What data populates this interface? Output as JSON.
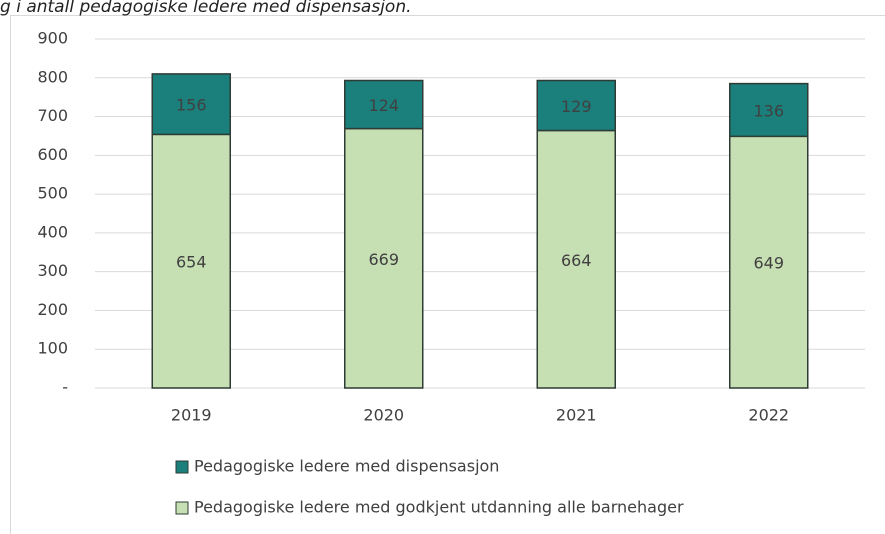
{
  "chart_data": {
    "type": "bar",
    "stacked": true,
    "title": "g i antall pedagogiske ledere med dispensasjon.",
    "categories": [
      "2019",
      "2020",
      "2021",
      "2022"
    ],
    "series": [
      {
        "name": "Pedagogiske ledere med dispensasjon",
        "color": "#1b7f7c",
        "values": [
          156,
          124,
          129,
          136
        ]
      },
      {
        "name": "Pedagogiske ledere med godkjent utdanning alle barnehager",
        "color": "#c6e0b4",
        "values": [
          654,
          669,
          664,
          649
        ]
      }
    ],
    "ylim": [
      0,
      900
    ],
    "yticks": [
      {
        "value": 0,
        "label": "-"
      },
      100,
      200,
      300,
      400,
      500,
      600,
      700,
      800,
      900
    ],
    "grid": true
  }
}
